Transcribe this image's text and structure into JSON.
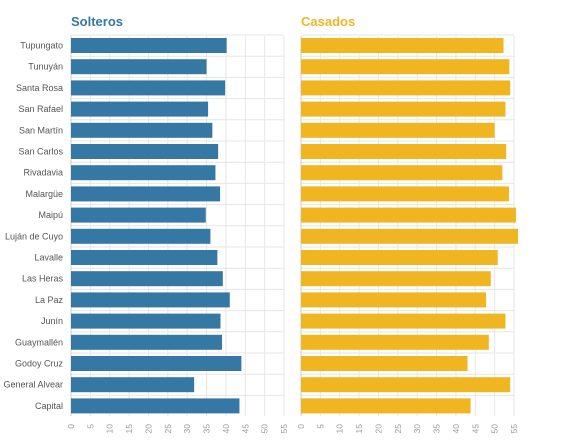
{
  "chart_data": {
    "type": "bar",
    "orientation": "horizontal",
    "categories": [
      "Tupungato",
      "Tunuyán",
      "Santa Rosa",
      "San Rafael",
      "San Martín",
      "San Carlos",
      "Rivadavia",
      "Malargüe",
      "Maipú",
      "Luján de Cuyo",
      "Lavalle",
      "Las Heras",
      "La Paz",
      "Junín",
      "Guaymallén",
      "Godoy Cruz",
      "General Alvear",
      "Capital"
    ],
    "xlim": [
      0,
      55
    ],
    "ticks": [
      0,
      5,
      10,
      15,
      20,
      25,
      30,
      35,
      40,
      45,
      50,
      55
    ],
    "grid": true,
    "series": [
      {
        "name": "Solteros",
        "color": "#3578a3",
        "values": [
          40.2,
          35.0,
          39.8,
          35.4,
          36.5,
          38.0,
          37.3,
          38.5,
          34.8,
          36.0,
          37.8,
          39.2,
          41.0,
          38.6,
          39.0,
          44.0,
          31.8,
          43.5
        ]
      },
      {
        "name": "Casados",
        "color": "#f0b621",
        "values": [
          52.3,
          53.8,
          54.0,
          52.8,
          50.0,
          53.0,
          52.0,
          53.7,
          55.5,
          56.5,
          50.8,
          49.0,
          47.8,
          52.8,
          48.5,
          43.0,
          54.0,
          43.8
        ]
      }
    ]
  }
}
